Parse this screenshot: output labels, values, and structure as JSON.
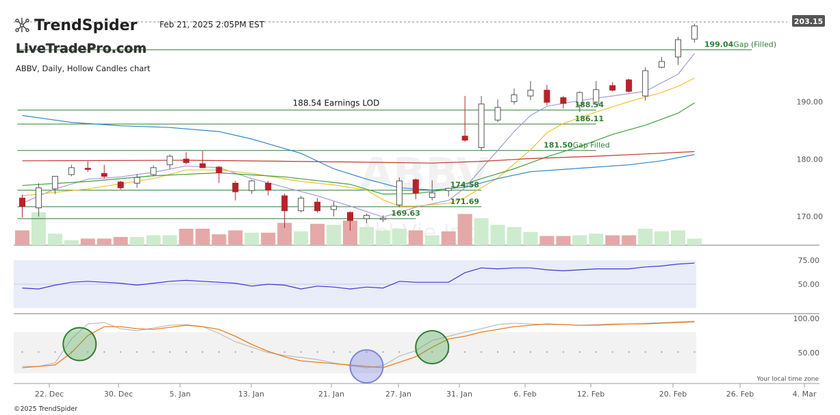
{
  "header": {
    "brand": "TrendSpider",
    "timestamp": "Feb 21, 2025 2:05PM EST",
    "watermark_site": "LiveTradePro.com",
    "chart_title": "ABBV, Daily, Hollow Candles chart",
    "symbol_watermark": "ABBV",
    "company_watermark": "AbbVie Inc.",
    "last_price": "203.15"
  },
  "footer": {
    "copyright": "©2025 TrendSpider",
    "timezone_note": "Your local time zone"
  },
  "colors": {
    "up": "#555555",
    "down": "#b5232a",
    "vol_up": "#cdeccd",
    "vol_down": "#e4a9a6",
    "sma_short": "#a39bd8",
    "sma_mid": "#f0c32a",
    "sma_green": "#3f9e3f",
    "sma_blue": "#2f86c8",
    "sma_red": "#c0392b",
    "level_line": "#2e7d32",
    "rsi": "#3a3acb",
    "stoch_k": "#bdbdbd",
    "stoch_d": "#e8801e"
  },
  "chart_data": {
    "type": "candlestick",
    "style": "hollow",
    "x_tick_labels": [
      "22. Dec",
      "30. Dec",
      "5. Jan",
      "13. Jan",
      "21. Jan",
      "27. Jan",
      "31. Jan",
      "6. Feb",
      "12. Feb",
      "20. Feb",
      "26. Feb",
      "4. Mar"
    ],
    "price_axis": {
      "ticks": [
        170,
        180,
        190
      ],
      "labels": [
        "170.00",
        "180.00",
        "190.00"
      ],
      "ylim": [
        165,
        203.9
      ]
    },
    "rsi_axis": {
      "labels": [
        "75.00",
        "50.00"
      ],
      "ticks": [
        75,
        50
      ]
    },
    "stoch_axis": {
      "labels": [
        "100.00",
        "50.00"
      ],
      "ticks": [
        100,
        50
      ]
    },
    "candles": [
      {
        "o": 173.2,
        "h": 173.8,
        "l": 169.8,
        "c": 171.8
      },
      {
        "o": 171.5,
        "h": 175.8,
        "l": 170.0,
        "c": 175.0
      },
      {
        "o": 174.8,
        "h": 177.0,
        "l": 173.9,
        "c": 177.0
      },
      {
        "o": 177.3,
        "h": 179.0,
        "l": 177.0,
        "c": 178.5
      },
      {
        "o": 178.4,
        "h": 179.6,
        "l": 177.8,
        "c": 178.2
      },
      {
        "o": 177.5,
        "h": 179.0,
        "l": 176.6,
        "c": 177.0
      },
      {
        "o": 176.0,
        "h": 176.2,
        "l": 174.7,
        "c": 175.0
      },
      {
        "o": 175.8,
        "h": 177.4,
        "l": 175.0,
        "c": 176.8
      },
      {
        "o": 177.3,
        "h": 178.9,
        "l": 177.0,
        "c": 178.5
      },
      {
        "o": 179.0,
        "h": 180.8,
        "l": 178.3,
        "c": 180.5
      },
      {
        "o": 180.0,
        "h": 181.2,
        "l": 179.1,
        "c": 179.4
      },
      {
        "o": 179.2,
        "h": 181.4,
        "l": 178.5,
        "c": 178.5
      },
      {
        "o": 178.6,
        "h": 178.8,
        "l": 175.8,
        "c": 177.6
      },
      {
        "o": 175.8,
        "h": 176.2,
        "l": 172.8,
        "c": 174.3
      },
      {
        "o": 174.5,
        "h": 176.4,
        "l": 173.9,
        "c": 176.2
      },
      {
        "o": 175.8,
        "h": 176.2,
        "l": 173.7,
        "c": 174.6
      },
      {
        "o": 173.6,
        "h": 174.0,
        "l": 168.0,
        "c": 171.0
      },
      {
        "o": 171.0,
        "h": 173.6,
        "l": 170.7,
        "c": 173.2
      },
      {
        "o": 172.5,
        "h": 173.2,
        "l": 170.7,
        "c": 171.0
      },
      {
        "o": 171.2,
        "h": 172.6,
        "l": 170.0,
        "c": 171.8
      },
      {
        "o": 170.7,
        "h": 170.9,
        "l": 167.5,
        "c": 169.3
      },
      {
        "o": 169.6,
        "h": 170.5,
        "l": 168.8,
        "c": 170.2
      },
      {
        "o": 169.5,
        "h": 170.2,
        "l": 169.0,
        "c": 169.7
      },
      {
        "o": 172.0,
        "h": 176.8,
        "l": 171.6,
        "c": 176.2
      },
      {
        "o": 176.4,
        "h": 176.6,
        "l": 173.0,
        "c": 174.1
      },
      {
        "o": 173.3,
        "h": 176.3,
        "l": 172.8,
        "c": 174.1
      },
      {
        "o": 174.5,
        "h": 175.0,
        "l": 173.5,
        "c": 174.9
      },
      {
        "o": 184.0,
        "h": 191.0,
        "l": 183.0,
        "c": 183.3
      },
      {
        "o": 182.0,
        "h": 191.0,
        "l": 181.5,
        "c": 189.6
      },
      {
        "o": 186.8,
        "h": 190.4,
        "l": 186.4,
        "c": 189.0
      },
      {
        "o": 190.0,
        "h": 192.3,
        "l": 189.5,
        "c": 191.2
      },
      {
        "o": 191.0,
        "h": 193.6,
        "l": 190.3,
        "c": 192.0
      },
      {
        "o": 192.0,
        "h": 192.9,
        "l": 189.4,
        "c": 189.9
      },
      {
        "o": 190.7,
        "h": 191.0,
        "l": 188.8,
        "c": 189.7
      },
      {
        "o": 189.4,
        "h": 191.8,
        "l": 188.2,
        "c": 191.6
      },
      {
        "o": 189.6,
        "h": 193.6,
        "l": 189.4,
        "c": 192.1
      },
      {
        "o": 192.8,
        "h": 193.4,
        "l": 191.8,
        "c": 192.0
      },
      {
        "o": 193.8,
        "h": 194.0,
        "l": 191.6,
        "c": 191.8
      },
      {
        "o": 191.0,
        "h": 196.0,
        "l": 190.2,
        "c": 195.4
      },
      {
        "o": 196.0,
        "h": 197.8,
        "l": 195.8,
        "c": 197.0
      },
      {
        "o": 197.8,
        "h": 201.3,
        "l": 196.4,
        "c": 200.8
      },
      {
        "o": 200.9,
        "h": 203.6,
        "l": 200.3,
        "c": 203.2
      }
    ],
    "volume": [
      {
        "v": 0.45,
        "dir": "down"
      },
      {
        "v": 1.0,
        "dir": "up"
      },
      {
        "v": 0.35,
        "dir": "up"
      },
      {
        "v": 0.15,
        "dir": "up"
      },
      {
        "v": 0.2,
        "dir": "down"
      },
      {
        "v": 0.2,
        "dir": "down"
      },
      {
        "v": 0.25,
        "dir": "down"
      },
      {
        "v": 0.25,
        "dir": "up"
      },
      {
        "v": 0.3,
        "dir": "up"
      },
      {
        "v": 0.3,
        "dir": "up"
      },
      {
        "v": 0.5,
        "dir": "down"
      },
      {
        "v": 0.5,
        "dir": "down"
      },
      {
        "v": 0.33,
        "dir": "down"
      },
      {
        "v": 0.45,
        "dir": "down"
      },
      {
        "v": 0.38,
        "dir": "up"
      },
      {
        "v": 0.38,
        "dir": "down"
      },
      {
        "v": 0.68,
        "dir": "down"
      },
      {
        "v": 0.42,
        "dir": "up"
      },
      {
        "v": 0.65,
        "dir": "down"
      },
      {
        "v": 0.62,
        "dir": "up"
      },
      {
        "v": 0.75,
        "dir": "down"
      },
      {
        "v": 0.55,
        "dir": "up"
      },
      {
        "v": 0.45,
        "dir": "up"
      },
      {
        "v": 0.5,
        "dir": "up"
      },
      {
        "v": 0.45,
        "dir": "down"
      },
      {
        "v": 0.3,
        "dir": "up"
      },
      {
        "v": 0.42,
        "dir": "down"
      },
      {
        "v": 0.95,
        "dir": "down"
      },
      {
        "v": 0.82,
        "dir": "up"
      },
      {
        "v": 0.62,
        "dir": "up"
      },
      {
        "v": 0.55,
        "dir": "up"
      },
      {
        "v": 0.4,
        "dir": "up"
      },
      {
        "v": 0.28,
        "dir": "down"
      },
      {
        "v": 0.28,
        "dir": "down"
      },
      {
        "v": 0.3,
        "dir": "up"
      },
      {
        "v": 0.35,
        "dir": "up"
      },
      {
        "v": 0.3,
        "dir": "down"
      },
      {
        "v": 0.3,
        "dir": "down"
      },
      {
        "v": 0.5,
        "dir": "up"
      },
      {
        "v": 0.42,
        "dir": "up"
      },
      {
        "v": 0.45,
        "dir": "up"
      },
      {
        "v": 0.2,
        "dir": "up"
      }
    ],
    "moving_averages": [
      {
        "key": "sma_short",
        "points": [
          [
            0,
            172.3
          ],
          [
            2,
            174.8
          ],
          [
            4,
            176.5
          ],
          [
            6,
            176.9
          ],
          [
            8,
            177.7
          ],
          [
            10,
            178.8
          ],
          [
            12,
            178.5
          ],
          [
            14,
            176.6
          ],
          [
            16,
            175.1
          ],
          [
            18,
            173.6
          ],
          [
            20,
            171.8
          ],
          [
            22,
            169.9
          ],
          [
            24,
            171.6
          ],
          [
            26,
            172.8
          ],
          [
            27,
            175.0
          ],
          [
            28,
            178.3
          ],
          [
            29,
            181.5
          ],
          [
            30,
            184.8
          ],
          [
            31,
            187.6
          ],
          [
            32,
            189.2
          ],
          [
            34,
            190.2
          ],
          [
            36,
            191.0
          ],
          [
            38,
            191.8
          ],
          [
            40,
            194.8
          ],
          [
            41,
            198.4
          ]
        ]
      },
      {
        "key": "sma_mid",
        "points": [
          [
            0,
            173.6
          ],
          [
            4,
            174.8
          ],
          [
            8,
            176.6
          ],
          [
            10,
            178.1
          ],
          [
            12,
            178.1
          ],
          [
            14,
            177.5
          ],
          [
            17,
            176.1
          ],
          [
            19,
            175.5
          ],
          [
            21,
            174.6
          ],
          [
            22,
            172.9
          ],
          [
            23,
            171.8
          ],
          [
            24,
            171.8
          ],
          [
            26,
            172.3
          ],
          [
            27,
            173.3
          ],
          [
            29,
            176.7
          ],
          [
            31,
            181.6
          ],
          [
            32,
            184.6
          ],
          [
            33,
            186.2
          ],
          [
            35,
            188.2
          ],
          [
            37,
            190.0
          ],
          [
            39,
            191.6
          ],
          [
            40,
            192.7
          ],
          [
            41,
            194.1
          ]
        ]
      },
      {
        "key": "sma_green",
        "points": [
          [
            0,
            175.4
          ],
          [
            4,
            176.1
          ],
          [
            8,
            177.1
          ],
          [
            12,
            177.6
          ],
          [
            16,
            176.9
          ],
          [
            20,
            175.6
          ],
          [
            22,
            173.9
          ],
          [
            24,
            174.0
          ],
          [
            26,
            174.7
          ],
          [
            28,
            176.6
          ],
          [
            30,
            178.3
          ],
          [
            32,
            180.4
          ],
          [
            34,
            182.2
          ],
          [
            36,
            184.3
          ],
          [
            38,
            185.9
          ],
          [
            40,
            188.0
          ],
          [
            41,
            189.8
          ]
        ]
      },
      {
        "key": "sma_blue",
        "points": [
          [
            0,
            187.6
          ],
          [
            3,
            186.4
          ],
          [
            6,
            185.8
          ],
          [
            9,
            185.5
          ],
          [
            12,
            184.8
          ],
          [
            14,
            183.5
          ],
          [
            17,
            181.0
          ],
          [
            19,
            178.3
          ],
          [
            21,
            176.5
          ],
          [
            23,
            175.0
          ],
          [
            25,
            174.6
          ],
          [
            27,
            175.1
          ],
          [
            29,
            176.6
          ],
          [
            31,
            177.8
          ],
          [
            33,
            178.2
          ],
          [
            35,
            178.6
          ],
          [
            37,
            179.0
          ],
          [
            39,
            179.7
          ],
          [
            41,
            180.8
          ]
        ]
      },
      {
        "key": "sma_red",
        "points": [
          [
            0,
            179.7
          ],
          [
            10,
            179.8
          ],
          [
            20,
            179.5
          ],
          [
            25,
            179.3
          ],
          [
            28,
            179.6
          ],
          [
            31,
            180.1
          ],
          [
            35,
            180.5
          ],
          [
            38,
            180.9
          ],
          [
            41,
            181.3
          ]
        ]
      }
    ],
    "levels": [
      {
        "price": 199.04,
        "x_start": -0.3,
        "x_end": 44.5,
        "label": "199.04",
        "label_suffix": "Gap (Filled)",
        "label_at": 41.6
      },
      {
        "price": 188.54,
        "x_start": -0.3,
        "x_end": 35.0,
        "label": "188.54",
        "label_at": 33.7
      },
      {
        "price": 186.11,
        "x_start": -0.3,
        "x_end": 35.0,
        "label": "186.11",
        "label_at": 33.7
      },
      {
        "price": 181.5,
        "x_start": -0.3,
        "x_end": 35.0,
        "label": "181.50",
        "label_suffix": "Gap Filled",
        "label_at": 31.8
      },
      {
        "price": 174.58,
        "x_start": -0.3,
        "x_end": 28.0,
        "label": "174.58",
        "label_at": 26.1
      },
      {
        "price": 171.69,
        "x_start": -0.3,
        "x_end": 28.0,
        "label": "171.69",
        "label_at": 26.1
      },
      {
        "price": 169.63,
        "x_start": -0.3,
        "x_end": 24.0,
        "label": "169.63",
        "label_at": 22.5
      }
    ],
    "annotation": {
      "text": "188.54 Earnings LOD",
      "price": 188.54,
      "at": 16.5
    },
    "rsi": [
      46,
      45,
      49,
      52,
      53,
      52,
      51,
      49,
      51,
      53,
      54,
      53,
      52,
      51,
      48,
      50,
      49,
      45,
      48,
      47,
      45,
      47,
      46,
      53,
      52,
      52,
      52,
      62,
      67,
      66,
      67,
      67,
      65,
      64,
      65,
      66,
      66,
      66,
      68,
      69,
      71,
      72
    ],
    "stoch_k": [
      30,
      30,
      35,
      70,
      92,
      94,
      85,
      82,
      86,
      90,
      91,
      88,
      78,
      66,
      58,
      50,
      46,
      43,
      40,
      35,
      31,
      28,
      31,
      45,
      53,
      68,
      74,
      80,
      85,
      91,
      93,
      92,
      91,
      91,
      90,
      91,
      92,
      92,
      93,
      94,
      95,
      96
    ],
    "stoch_d": [
      28,
      30,
      32,
      50,
      75,
      88,
      88,
      85,
      84,
      87,
      90,
      88,
      84,
      74,
      62,
      52,
      44,
      38,
      36,
      34,
      32,
      30,
      28,
      36,
      44,
      58,
      70,
      74,
      80,
      84,
      88,
      90,
      92,
      91,
      90,
      90,
      91,
      92,
      92,
      93,
      94,
      95
    ],
    "stoch_circles": [
      3.5,
      21,
      25
    ]
  }
}
